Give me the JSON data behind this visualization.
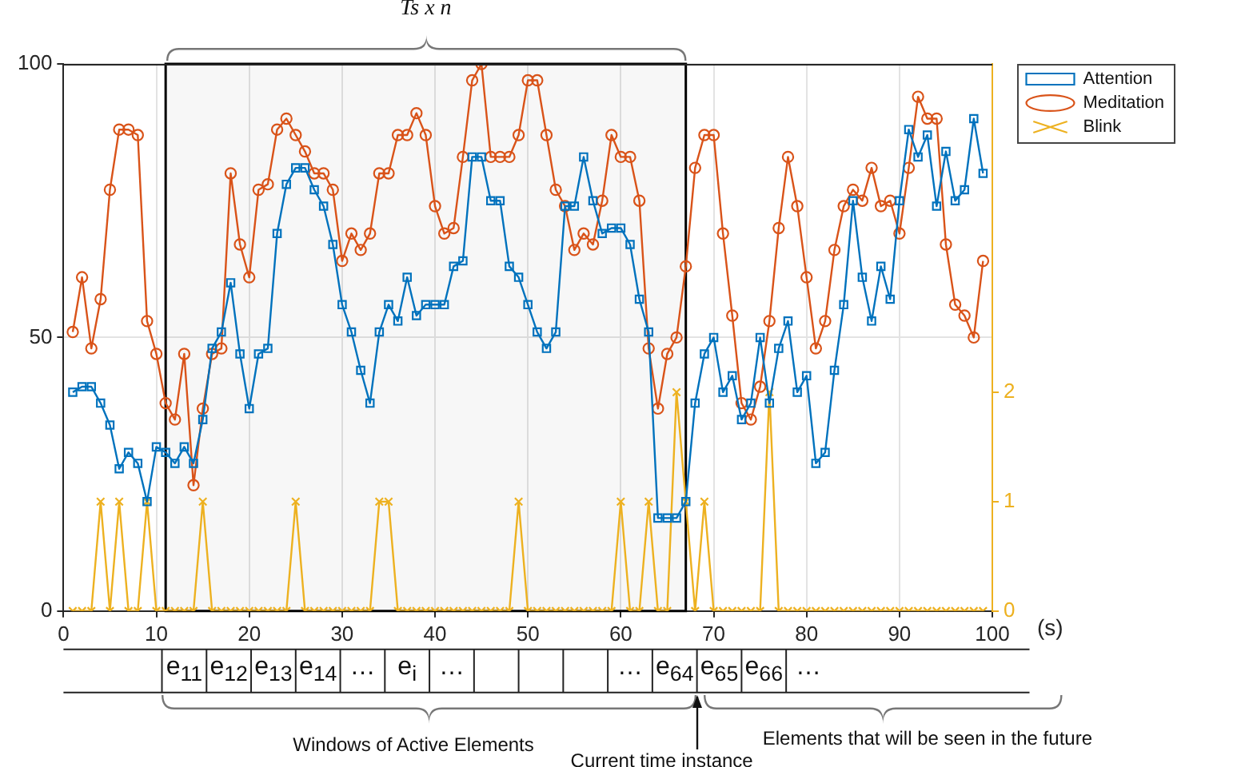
{
  "chart_data": {
    "type": "line",
    "x": [
      1,
      2,
      3,
      4,
      5,
      6,
      7,
      8,
      9,
      10,
      11,
      12,
      13,
      14,
      15,
      16,
      17,
      18,
      19,
      20,
      21,
      22,
      23,
      24,
      25,
      26,
      27,
      28,
      29,
      30,
      31,
      32,
      33,
      34,
      35,
      36,
      37,
      38,
      39,
      40,
      41,
      42,
      43,
      44,
      45,
      46,
      47,
      48,
      49,
      50,
      51,
      52,
      53,
      54,
      55,
      56,
      57,
      58,
      59,
      60,
      61,
      62,
      63,
      64,
      65,
      66,
      67,
      68,
      69,
      70,
      71,
      72,
      73,
      74,
      75,
      76,
      77,
      78,
      79,
      80,
      81,
      82,
      83,
      84,
      85,
      86,
      87,
      88,
      89,
      90,
      91,
      92,
      93,
      94,
      95,
      96,
      97,
      98,
      99
    ],
    "series": [
      {
        "name": "Attention",
        "color": "#0072bd",
        "marker": "square",
        "values": [
          40,
          41,
          41,
          38,
          34,
          26,
          29,
          27,
          20,
          30,
          29,
          27,
          30,
          27,
          35,
          48,
          51,
          60,
          47,
          37,
          47,
          48,
          69,
          78,
          81,
          81,
          77,
          74,
          67,
          56,
          51,
          44,
          38,
          51,
          56,
          53,
          61,
          54,
          56,
          56,
          56,
          63,
          64,
          83,
          83,
          75,
          75,
          63,
          61,
          56,
          51,
          48,
          51,
          74,
          74,
          83,
          75,
          69,
          70,
          70,
          67,
          57,
          51,
          17,
          17,
          17,
          20,
          38,
          47,
          50,
          40,
          43,
          35,
          38,
          50,
          38,
          48,
          53,
          40,
          43,
          27,
          29,
          44,
          56,
          75,
          61,
          53,
          63,
          57,
          75,
          88,
          83,
          87,
          74,
          84,
          75,
          77,
          90,
          80
        ]
      },
      {
        "name": "Meditation",
        "color": "#d95319",
        "marker": "circle",
        "values": [
          51,
          61,
          48,
          57,
          77,
          88,
          88,
          87,
          53,
          47,
          38,
          35,
          47,
          23,
          37,
          47,
          48,
          80,
          67,
          61,
          77,
          78,
          88,
          90,
          87,
          84,
          80,
          80,
          77,
          64,
          69,
          66,
          69,
          80,
          80,
          87,
          87,
          91,
          87,
          74,
          69,
          70,
          83,
          97,
          100,
          83,
          83,
          83,
          87,
          97,
          97,
          87,
          77,
          74,
          66,
          69,
          67,
          75,
          87,
          83,
          83,
          75,
          48,
          37,
          47,
          50,
          63,
          81,
          87,
          87,
          69,
          54,
          38,
          35,
          41,
          53,
          70,
          83,
          74,
          61,
          48,
          53,
          66,
          74,
          77,
          75,
          81,
          74,
          75,
          69,
          81,
          94,
          90,
          90,
          67,
          56,
          54,
          50,
          64
        ]
      },
      {
        "name": "Blink",
        "color": "#edb120",
        "marker": "cross",
        "axis": "y2",
        "values": [
          0,
          0,
          0,
          1,
          0,
          1,
          0,
          0,
          1,
          0,
          0,
          0,
          0,
          0,
          1,
          0,
          0,
          0,
          0,
          0,
          0,
          0,
          0,
          0,
          1,
          0,
          0,
          0,
          0,
          0,
          0,
          0,
          0,
          1,
          1,
          0,
          0,
          0,
          0,
          0,
          0,
          0,
          0,
          0,
          0,
          0,
          0,
          0,
          1,
          0,
          0,
          0,
          0,
          0,
          0,
          0,
          0,
          0,
          0,
          1,
          0,
          0,
          1,
          0,
          0,
          2,
          1,
          0,
          1,
          0,
          0,
          0,
          0,
          0,
          0,
          2,
          0,
          0,
          0,
          0,
          0,
          0,
          0,
          0,
          0,
          0,
          0,
          0,
          0,
          0,
          0,
          0,
          0,
          0,
          0,
          0,
          0,
          0,
          0
        ]
      }
    ],
    "xlabel": "(s)",
    "xlim": [
      0,
      100
    ],
    "xticks": [
      0,
      10,
      20,
      30,
      40,
      50,
      60,
      70,
      80,
      90,
      100
    ],
    "ylim": [
      0,
      100
    ],
    "yticks": [
      0,
      50,
      100
    ],
    "y2lim": [
      0,
      5
    ],
    "y2ticks": [
      0,
      1,
      2
    ],
    "grid": true,
    "legend": "top right",
    "bands": [
      {
        "axis": "x",
        "from": 11,
        "to": 67,
        "label": "Ts x n",
        "color": "#000000"
      }
    ],
    "annotations": [
      "e$_{11}$",
      "e$_{12}$",
      "e$_{13}$",
      "e$_{14}$",
      "…",
      "e$_{i}$",
      "…",
      "…",
      "e$_{64}$",
      "e$_{65}$",
      "e$_{66}$",
      "…",
      "Windows of Active Elements",
      "Current time instance",
      "Elements that will be seen in the future"
    ]
  }
}
